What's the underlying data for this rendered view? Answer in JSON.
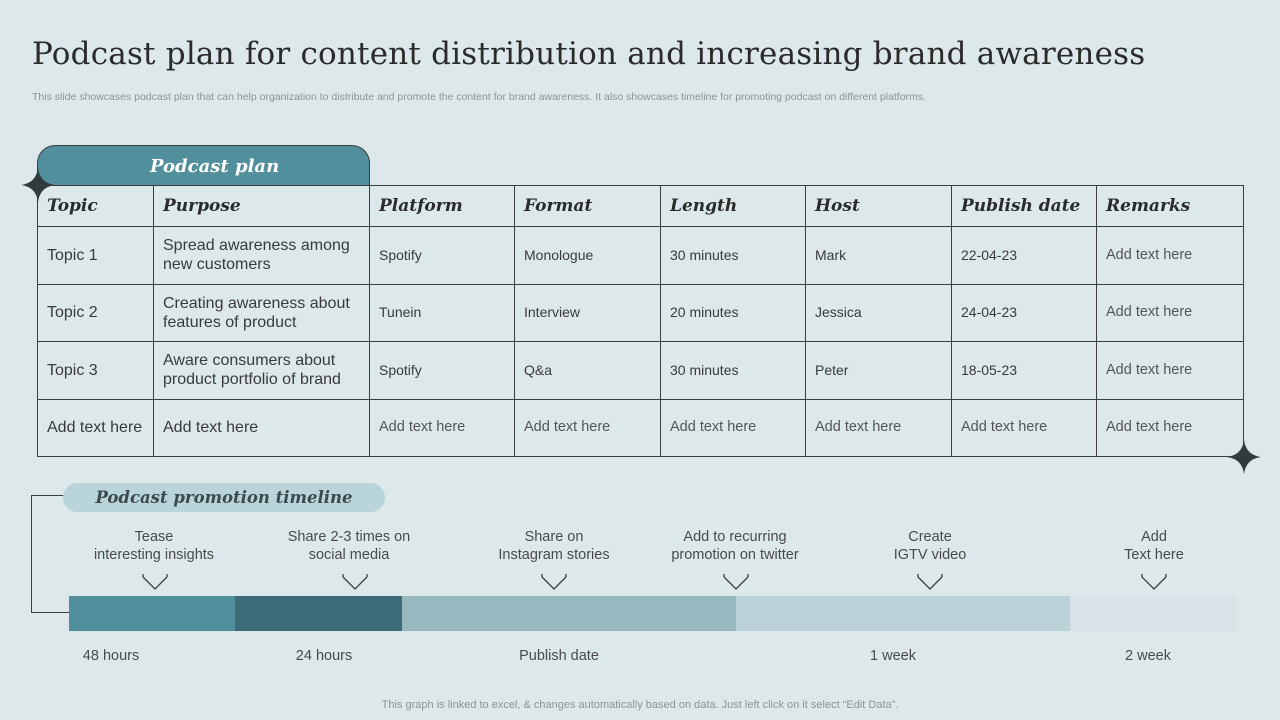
{
  "title": "Podcast plan for content distribution and increasing brand awareness",
  "subtitle": "This slide showcases podcast plan that can help organization to distribute and promote the content for  brand awareness. It also showcases timeline for promoting podcast on different platforms.",
  "plan": {
    "tab_label": "Podcast plan",
    "headers": [
      "Topic",
      "Purpose",
      "Platform",
      "Format",
      "Length",
      "Host",
      "Publish date",
      "Remarks"
    ],
    "rows": [
      [
        "Topic 1",
        "Spread awareness among new customers",
        "Spotify",
        "Monologue",
        "30 minutes",
        "Mark",
        "22-04-23",
        "Add text here"
      ],
      [
        "Topic 2",
        "Creating awareness about features of product",
        "Tunein",
        "Interview",
        "20 minutes",
        "Jessica",
        "24-04-23",
        "Add text here"
      ],
      [
        "Topic 3",
        "Aware consumers about product portfolio of brand",
        "Spotify",
        "Q&a",
        "30 minutes",
        "Peter",
        "18-05-23",
        "Add text here"
      ],
      [
        "Add text here",
        "Add text here",
        "Add text here",
        "Add text here",
        "Add text here",
        "Add text here",
        "Add text here",
        "Add text here"
      ]
    ]
  },
  "timeline": {
    "tab_label": "Podcast  promotion timeline",
    "steps": [
      {
        "line1": "Tease",
        "line2": "interesting insights"
      },
      {
        "line1": "Share 2-3 times on",
        "line2": "social media"
      },
      {
        "line1": "Share on",
        "line2": "Instagram stories"
      },
      {
        "line1": "Add to recurring",
        "line2": "promotion on twitter"
      },
      {
        "line1": "Create",
        "line2": "IGTV video"
      },
      {
        "line1": "Add",
        "line2": "Text here"
      }
    ],
    "segments": [
      {
        "color": "#528f9d"
      },
      {
        "color": "#3d6a77"
      },
      {
        "color": "#98b9c0"
      },
      {
        "color": "#bbd3d8"
      },
      {
        "color": "#d7e3e7"
      }
    ],
    "times": [
      "48 hours",
      "24 hours",
      "Publish date",
      "1 week",
      "2 week"
    ]
  },
  "footer": "This graph is linked to excel,  & changes automatically based on data. Just left click on it select “Edit Data”.",
  "colors": {
    "background": "#dde8ea",
    "accent": "#528f9d",
    "dark_accent": "#3d6a77"
  }
}
